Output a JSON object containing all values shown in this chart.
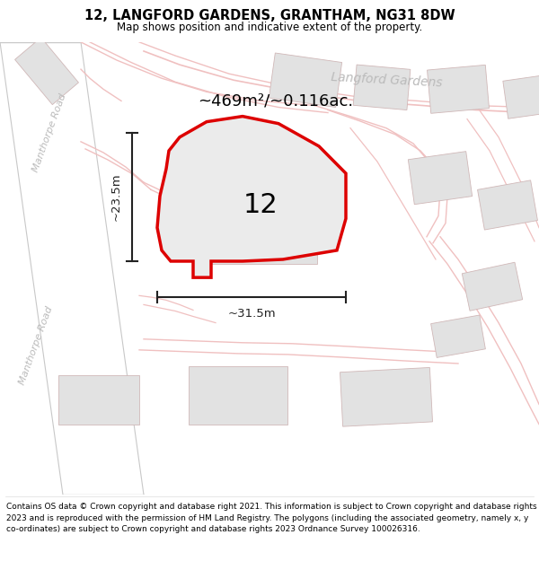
{
  "title": "12, LANGFORD GARDENS, GRANTHAM, NG31 8DW",
  "subtitle": "Map shows position and indicative extent of the property.",
  "footer": "Contains OS data © Crown copyright and database right 2021. This information is subject to Crown copyright and database rights 2023 and is reproduced with the permission of HM Land Registry. The polygons (including the associated geometry, namely x, y co-ordinates) are subject to Crown copyright and database rights 2023 Ordnance Survey 100026316.",
  "area_text": "~469m²/~0.116ac.",
  "label_text": "12",
  "dim_width": "~31.5m",
  "dim_height": "~23.5m",
  "road_label1": "Manthorpe Road",
  "road_label2": "Manthorpe Road",
  "street_label": "Langford Gardens",
  "bg_color": "#f7f3f3",
  "plot_fill": "#ebebeb",
  "plot_outline": "#dd0000",
  "road_fill": "#ffffff",
  "road_edge": "#c8c8c8",
  "road_line": "#f0c0c0",
  "building_fill": "#e2e2e2",
  "building_edge": "#d0b8b8",
  "dim_color": "#222222",
  "title_fontsize": 10.5,
  "subtitle_fontsize": 8.5,
  "footer_fontsize": 6.5,
  "road_label_color": "#bbbbbb",
  "street_label_color": "#bbbbbb"
}
